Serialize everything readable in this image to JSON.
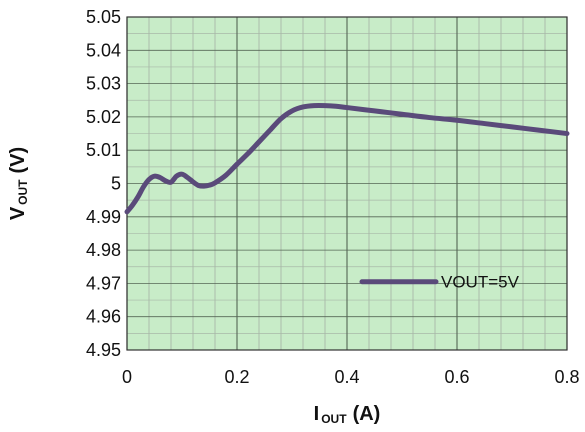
{
  "chart_data": {
    "type": "line",
    "title": "",
    "xlabel": {
      "main": "I",
      "sub": "OUT",
      "unit": "(A)"
    },
    "ylabel": {
      "main": "V",
      "sub": "OUT",
      "unit": "(V)"
    },
    "xlim": [
      0,
      0.8
    ],
    "ylim": [
      4.95,
      5.05
    ],
    "x_ticks": [
      "0",
      "0.2",
      "0.4",
      "0.6",
      "0.8"
    ],
    "y_ticks": [
      "5.05",
      "5.04",
      "5.03",
      "5.02",
      "5.01",
      "5",
      "4.99",
      "4.98",
      "4.97",
      "4.96",
      "4.95"
    ],
    "grid": true,
    "legend_position": "inside-lower-right",
    "colors": {
      "plot_bg": "#c8ecc8",
      "grid_minor": "#a8b8a8",
      "grid_major": "#556655",
      "line": "#5a4a7a"
    },
    "series": [
      {
        "name": "VOUT=5V",
        "x": [
          0,
          0.01,
          0.02,
          0.03,
          0.04,
          0.05,
          0.06,
          0.07,
          0.08,
          0.09,
          0.1,
          0.11,
          0.12,
          0.13,
          0.14,
          0.15,
          0.16,
          0.18,
          0.2,
          0.22,
          0.24,
          0.26,
          0.28,
          0.3,
          0.32,
          0.34,
          0.36,
          0.38,
          0.4,
          0.45,
          0.5,
          0.55,
          0.6,
          0.65,
          0.7,
          0.75,
          0.8
        ],
        "values": [
          4.9915,
          4.9935,
          4.996,
          4.999,
          5.0012,
          5.0022,
          5.0018,
          5.0008,
          5.0004,
          5.0022,
          5.0028,
          5.0018,
          5.0005,
          4.9994,
          4.9992,
          4.9995,
          5.0002,
          5.0025,
          5.0058,
          5.009,
          5.0125,
          5.016,
          5.0195,
          5.0218,
          5.023,
          5.0234,
          5.0234,
          5.0232,
          5.0228,
          5.0218,
          5.0208,
          5.0198,
          5.019,
          5.018,
          5.017,
          5.016,
          5.015
        ]
      }
    ]
  }
}
